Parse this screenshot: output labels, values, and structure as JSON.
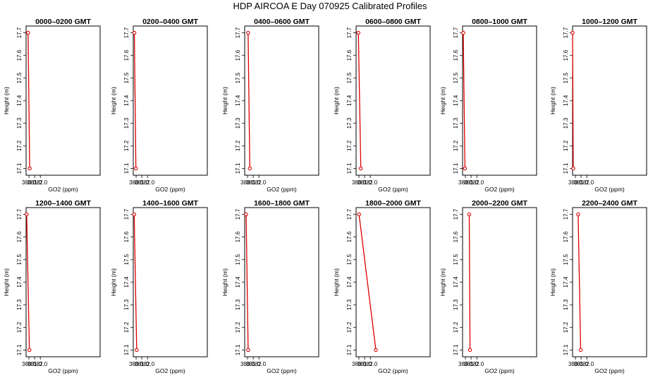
{
  "title": "HDP  AIRCOA E  Day 070925  Calibrated Profiles",
  "chart_data": [
    {
      "type": "line",
      "title": "0000–0200 GMT",
      "xlabel": "GO2 (ppm)",
      "ylabel": "Height (m)",
      "xlim": [
        379.5,
        392.5
      ],
      "ylim": [
        17.07,
        17.73
      ],
      "xticks": [
        380.0,
        381.0,
        382.0
      ],
      "xtick_labels": [
        "380.0",
        "381.0",
        "382.0"
      ],
      "yticks": [
        17.1,
        17.2,
        17.3,
        17.4,
        17.5,
        17.6,
        17.7
      ],
      "ytick_labels": [
        "17.1",
        "17.2",
        "17.3",
        "17.4",
        "17.5",
        "17.6",
        "17.7"
      ],
      "series": [
        {
          "x": [
            379.85,
            380.13
          ],
          "y": [
            17.7,
            17.1
          ]
        }
      ],
      "color": "#dd0000"
    },
    {
      "type": "line",
      "title": "0200–0400 GMT",
      "xlabel": "GO2 (ppm)",
      "ylabel": "Height (m)",
      "xlim": [
        379.5,
        392.5
      ],
      "ylim": [
        17.07,
        17.73
      ],
      "xticks": [
        380.0,
        381.0,
        382.0
      ],
      "xtick_labels": [
        "380.0",
        "381.0",
        "382.0"
      ],
      "yticks": [
        17.1,
        17.2,
        17.3,
        17.4,
        17.5,
        17.6,
        17.7
      ],
      "ytick_labels": [
        "17.1",
        "17.2",
        "17.3",
        "17.4",
        "17.5",
        "17.6",
        "17.7"
      ],
      "series": [
        {
          "x": [
            379.69,
            379.96
          ],
          "y": [
            17.7,
            17.1
          ]
        }
      ],
      "color": "#dd0000"
    },
    {
      "type": "line",
      "title": "0400–0600 GMT",
      "xlabel": "GO2 (ppm)",
      "ylabel": "Height (m)",
      "xlim": [
        379.5,
        392.5
      ],
      "ylim": [
        17.07,
        17.73
      ],
      "xticks": [
        380.0,
        381.0,
        382.0
      ],
      "xtick_labels": [
        "380.0",
        "381.0",
        "382.0"
      ],
      "yticks": [
        17.1,
        17.2,
        17.3,
        17.4,
        17.5,
        17.6,
        17.7
      ],
      "ytick_labels": [
        "17.1",
        "17.2",
        "17.3",
        "17.4",
        "17.5",
        "17.6",
        "17.7"
      ],
      "series": [
        {
          "x": [
            380.1,
            380.4
          ],
          "y": [
            17.7,
            17.1
          ]
        }
      ],
      "color": "#dd0000"
    },
    {
      "type": "line",
      "title": "0600–0800 GMT",
      "xlabel": "GO2 (ppm)",
      "ylabel": "Height (m)",
      "xlim": [
        379.5,
        392.5
      ],
      "ylim": [
        17.07,
        17.73
      ],
      "xticks": [
        380.0,
        381.0,
        382.0
      ],
      "xtick_labels": [
        "380.0",
        "381.0",
        "382.0"
      ],
      "yticks": [
        17.1,
        17.2,
        17.3,
        17.4,
        17.5,
        17.6,
        17.7
      ],
      "ytick_labels": [
        "17.1",
        "17.2",
        "17.3",
        "17.4",
        "17.5",
        "17.6",
        "17.7"
      ],
      "series": [
        {
          "x": [
            379.9,
            380.33
          ],
          "y": [
            17.7,
            17.1
          ]
        }
      ],
      "color": "#dd0000"
    },
    {
      "type": "line",
      "title": "0800–1000 GMT",
      "xlabel": "GO2 (ppm)",
      "ylabel": "Height (m)",
      "xlim": [
        379.5,
        392.5
      ],
      "ylim": [
        17.07,
        17.73
      ],
      "xticks": [
        380.0,
        381.0,
        382.0
      ],
      "xtick_labels": [
        "380.0",
        "381.0",
        "382.0"
      ],
      "yticks": [
        17.1,
        17.2,
        17.3,
        17.4,
        17.5,
        17.6,
        17.7
      ],
      "ytick_labels": [
        "17.1",
        "17.2",
        "17.3",
        "17.4",
        "17.5",
        "17.6",
        "17.7"
      ],
      "series": [
        {
          "x": [
            379.62,
            379.92
          ],
          "y": [
            17.7,
            17.1
          ]
        }
      ],
      "color": "#dd0000"
    },
    {
      "type": "line",
      "title": "1000–1200 GMT",
      "xlabel": "GO2 (ppm)",
      "ylabel": "Height (m)",
      "xlim": [
        379.5,
        392.5
      ],
      "ylim": [
        17.07,
        17.73
      ],
      "xticks": [
        380.0,
        381.0,
        382.0
      ],
      "xtick_labels": [
        "380.0",
        "381.0",
        "382.0"
      ],
      "yticks": [
        17.1,
        17.2,
        17.3,
        17.4,
        17.5,
        17.6,
        17.7
      ],
      "ytick_labels": [
        "17.1",
        "17.2",
        "17.3",
        "17.4",
        "17.5",
        "17.6",
        "17.7"
      ],
      "series": [
        {
          "x": [
            379.5,
            379.62
          ],
          "y": [
            17.7,
            17.1
          ]
        }
      ],
      "color": "#dd0000"
    },
    {
      "type": "line",
      "title": "1200–1400 GMT",
      "xlabel": "GO2 (ppm)",
      "ylabel": "Height (m)",
      "xlim": [
        379.5,
        392.5
      ],
      "ylim": [
        17.07,
        17.73
      ],
      "xticks": [
        380.0,
        381.0,
        382.0
      ],
      "xtick_labels": [
        "380.0",
        "381.0",
        "382.0"
      ],
      "yticks": [
        17.1,
        17.2,
        17.3,
        17.4,
        17.5,
        17.6,
        17.7
      ],
      "ytick_labels": [
        "17.1",
        "17.2",
        "17.3",
        "17.4",
        "17.5",
        "17.6",
        "17.7"
      ],
      "series": [
        {
          "x": [
            379.6,
            380.08
          ],
          "y": [
            17.7,
            17.1
          ]
        }
      ],
      "color": "#dd0000"
    },
    {
      "type": "line",
      "title": "1400–1600 GMT",
      "xlabel": "GO2 (ppm)",
      "ylabel": "Height (m)",
      "xlim": [
        379.5,
        392.5
      ],
      "ylim": [
        17.07,
        17.73
      ],
      "xticks": [
        380.0,
        381.0,
        382.0
      ],
      "xtick_labels": [
        "380.0",
        "381.0",
        "382.0"
      ],
      "yticks": [
        17.1,
        17.2,
        17.3,
        17.4,
        17.5,
        17.6,
        17.7
      ],
      "ytick_labels": [
        "17.1",
        "17.2",
        "17.3",
        "17.4",
        "17.5",
        "17.6",
        "17.7"
      ],
      "series": [
        {
          "x": [
            379.66,
            380.1
          ],
          "y": [
            17.7,
            17.1
          ]
        }
      ],
      "color": "#dd0000"
    },
    {
      "type": "line",
      "title": "1600–1800 GMT",
      "xlabel": "GO2 (ppm)",
      "ylabel": "Height (m)",
      "xlim": [
        379.5,
        392.5
      ],
      "ylim": [
        17.07,
        17.73
      ],
      "xticks": [
        380.0,
        381.0,
        382.0
      ],
      "xtick_labels": [
        "380.0",
        "381.0",
        "382.0"
      ],
      "yticks": [
        17.1,
        17.2,
        17.3,
        17.4,
        17.5,
        17.6,
        17.7
      ],
      "ytick_labels": [
        "17.1",
        "17.2",
        "17.3",
        "17.4",
        "17.5",
        "17.6",
        "17.7"
      ],
      "series": [
        {
          "x": [
            379.75,
            380.11
          ],
          "y": [
            17.7,
            17.1
          ]
        }
      ],
      "color": "#dd0000"
    },
    {
      "type": "line",
      "title": "1800–2000 GMT",
      "xlabel": "GO2 (ppm)",
      "ylabel": "Height (m)",
      "xlim": [
        379.5,
        392.5
      ],
      "ylim": [
        17.07,
        17.73
      ],
      "xticks": [
        380.0,
        381.0,
        382.0
      ],
      "xtick_labels": [
        "380.0",
        "381.0",
        "382.0"
      ],
      "yticks": [
        17.1,
        17.2,
        17.3,
        17.4,
        17.5,
        17.6,
        17.7
      ],
      "ytick_labels": [
        "17.1",
        "17.2",
        "17.3",
        "17.4",
        "17.5",
        "17.6",
        "17.7"
      ],
      "series": [
        {
          "x": [
            380.02,
            382.97
          ],
          "y": [
            17.7,
            17.1
          ]
        }
      ],
      "color": "#dd0000"
    },
    {
      "type": "line",
      "title": "2000–2200 GMT",
      "xlabel": "GO2 (ppm)",
      "ylabel": "Height (m)",
      "xlim": [
        379.5,
        392.5
      ],
      "ylim": [
        17.07,
        17.73
      ],
      "xticks": [
        380.0,
        381.0,
        382.0
      ],
      "xtick_labels": [
        "380.0",
        "381.0",
        "382.0"
      ],
      "yticks": [
        17.1,
        17.2,
        17.3,
        17.4,
        17.5,
        17.6,
        17.7
      ],
      "ytick_labels": [
        "17.1",
        "17.2",
        "17.3",
        "17.4",
        "17.5",
        "17.6",
        "17.7"
      ],
      "series": [
        {
          "x": [
            380.67,
            380.81
          ],
          "y": [
            17.7,
            17.1
          ]
        }
      ],
      "color": "#dd0000"
    },
    {
      "type": "line",
      "title": "2200–2400 GMT",
      "xlabel": "GO2 (ppm)",
      "ylabel": "Height (m)",
      "xlim": [
        379.5,
        392.5
      ],
      "ylim": [
        17.07,
        17.73
      ],
      "xticks": [
        380.0,
        381.0,
        382.0
      ],
      "xtick_labels": [
        "380.0",
        "381.0",
        "382.0"
      ],
      "yticks": [
        17.1,
        17.2,
        17.3,
        17.4,
        17.5,
        17.6,
        17.7
      ],
      "ytick_labels": [
        "17.1",
        "17.2",
        "17.3",
        "17.4",
        "17.5",
        "17.6",
        "17.7"
      ],
      "series": [
        {
          "x": [
            380.48,
            380.92
          ],
          "y": [
            17.7,
            17.1
          ]
        }
      ],
      "color": "#dd0000"
    }
  ]
}
